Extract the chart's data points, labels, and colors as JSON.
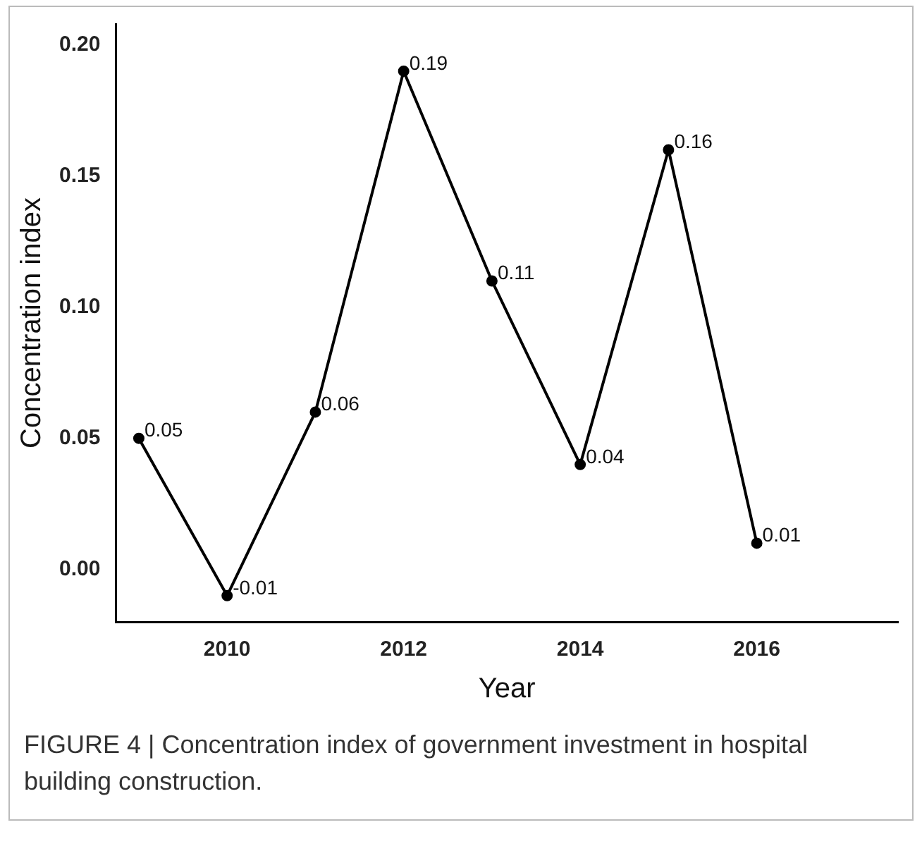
{
  "chart_data": {
    "type": "line",
    "xlabel": "Year",
    "ylabel": "Concentration index",
    "x": [
      2009,
      2010,
      2011,
      2012,
      2013,
      2014,
      2015,
      2016
    ],
    "series": [
      {
        "color": "#000000",
        "values": [
          0.05,
          -0.01,
          0.06,
          0.19,
          0.11,
          0.04,
          0.16,
          0.01
        ]
      }
    ],
    "xlim": [
      2008.74,
      2017.6
    ],
    "xticks": [
      2010,
      2012,
      2014,
      2016
    ],
    "ylim": [
      -0.02,
      0.208
    ],
    "yticks": [
      {
        "value": 0,
        "label": "0.00"
      },
      {
        "value": 0.05,
        "label": "0.05"
      },
      {
        "value": 0.1,
        "label": "0.10"
      },
      {
        "value": 0.15,
        "label": "0.15"
      },
      {
        "value": 0.2,
        "label": "0.20"
      }
    ],
    "grid": false,
    "legend": false,
    "marker": "circle",
    "line_style": "solid",
    "data_labels": true,
    "annotations": [
      "FIGURE 4 | Concentration index of government investment in hospital building construction."
    ]
  }
}
